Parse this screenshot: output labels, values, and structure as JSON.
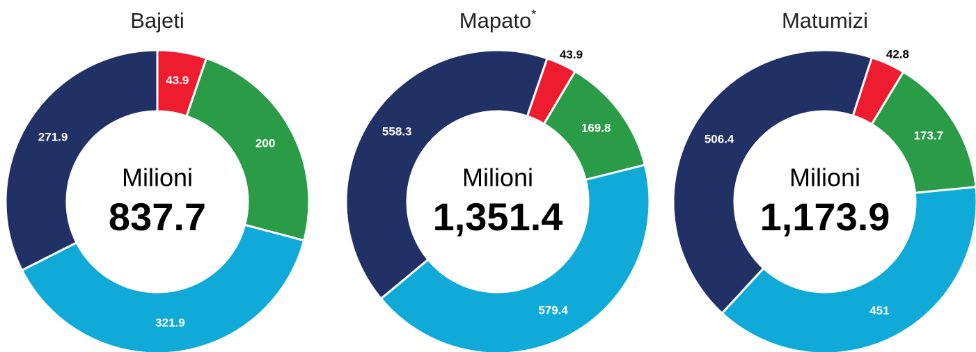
{
  "chart_data": [
    {
      "type": "pie",
      "title": "Bajeti",
      "center_label": "Milioni",
      "total": {
        "value": 837.7,
        "label": "837.7"
      },
      "values": [
        43.9,
        200,
        321.9,
        271.9
      ],
      "colors": [
        "#ed1c2e",
        "#2a9b46",
        "#0faad8",
        "#213166"
      ],
      "start_angle": 0
    },
    {
      "type": "pie",
      "title": "Mapato",
      "title_note": "*",
      "center_label": "Milioni",
      "total": {
        "value": 1351.4,
        "label": "1,351.4"
      },
      "values": [
        43.9,
        169.8,
        579.4,
        558.3
      ],
      "colors": [
        "#ed1c2e",
        "#2a9b46",
        "#0faad8",
        "#213166"
      ],
      "start_angle": 19
    },
    {
      "type": "pie",
      "title": "Matumizi",
      "center_label": "Milioni",
      "total": {
        "value": 1173.9,
        "label": "1,173.9"
      },
      "values": [
        42.8,
        173.7,
        451,
        506.4
      ],
      "colors": [
        "#ed1c2e",
        "#2a9b46",
        "#0faad8",
        "#213166"
      ],
      "start_angle": 18
    }
  ]
}
